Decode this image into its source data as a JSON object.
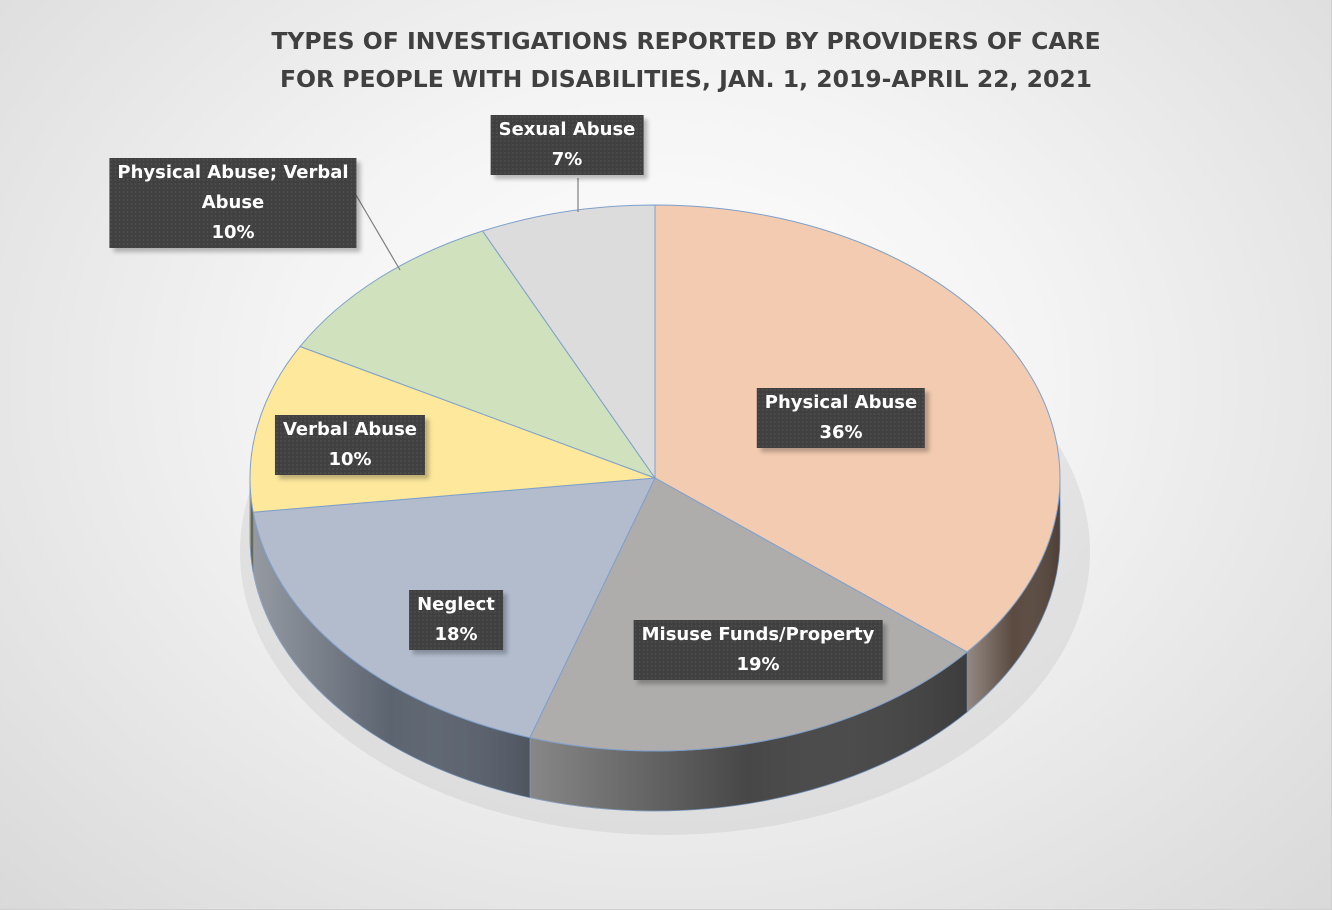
{
  "chart_data": {
    "type": "pie",
    "title": [
      "TYPES OF INVESTIGATIONS REPORTED BY PROVIDERS OF CARE",
      "FOR PEOPLE WITH DISABILITIES, JAN. 1, 2019-APRIL 22, 2021"
    ],
    "slices": [
      {
        "label": "Physical Abuse",
        "value": 36,
        "value_label": "36%",
        "color": "#f2cbb0",
        "side_color": "#5a4a40"
      },
      {
        "label": "Misuse Funds/Property",
        "value": 19,
        "value_label": "19%",
        "color": "#afadac",
        "side_color": "#474747"
      },
      {
        "label": "Neglect",
        "value": 18,
        "value_label": "18%",
        "color": "#b2bccd",
        "side_color": "#5c6470"
      },
      {
        "label": "Verbal Abuse",
        "value": 10,
        "value_label": "10%",
        "color": "#fde89c",
        "side_color": "#6a6040"
      },
      {
        "label": "Physical Abuse; Verbal Abuse",
        "value": 10,
        "value_label": "10%",
        "color": "#cfe2bd",
        "side_color": "#55604a"
      },
      {
        "label": "Sexual Abuse",
        "value": 7,
        "value_label": "7%",
        "color": "#dcdcdc",
        "side_color": "#5a5a5a"
      }
    ],
    "start_angle": "12 o'clock",
    "direction": "clockwise",
    "style": "3d",
    "legend": "none"
  }
}
